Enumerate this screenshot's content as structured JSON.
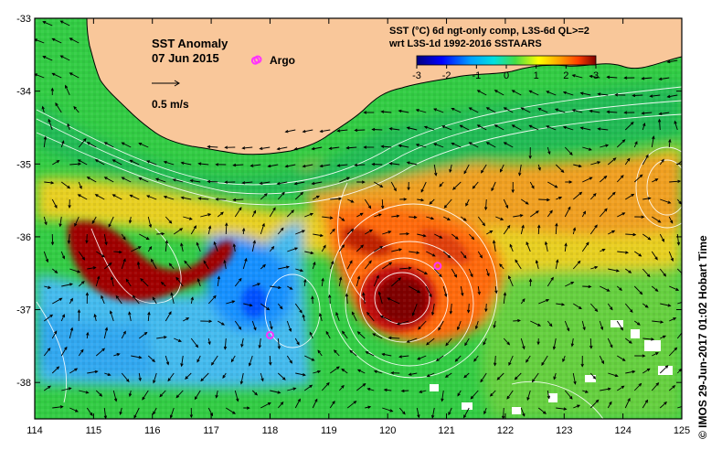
{
  "map": {
    "title": "SST Anomaly",
    "date": "07 Jun 2015",
    "legend_argo": "Argo",
    "scale_label": "0.5 m/s",
    "header_line1": "SST (°C) 6d ngt-only comp, L3S-6d QL>=2",
    "header_line2": "wrt L3S-1d 1992-2016 SSTAARS",
    "credit": "©  IMOS 29-Jun-2017 01:02 Hobart Time",
    "colors": {
      "land": "#f9c79a",
      "argo": "#ff33ff",
      "scale_cmap": [
        "#00007f",
        "#0000ff",
        "#00a0ff",
        "#00e0e0",
        "#44dd44",
        "#ffff00",
        "#ffa000",
        "#ff4000",
        "#7f0000"
      ]
    }
  },
  "chart_data": {
    "type": "heatmap",
    "xlim": [
      114,
      125
    ],
    "ylim": [
      -38.5,
      -33
    ],
    "x_ticks": [
      "114",
      "115",
      "116",
      "117",
      "118",
      "119",
      "120",
      "121",
      "122",
      "123",
      "124",
      "125"
    ],
    "y_ticks": [
      "-33",
      "-34",
      "-35",
      "-36",
      "-37",
      "-38"
    ],
    "colorbar_ticks": [
      "-3",
      "-2",
      "-1",
      "0",
      "1",
      "2",
      "3"
    ],
    "colorbar_range": [
      -3,
      3
    ],
    "argo_floats": [
      {
        "lon": 117.75,
        "lat": -33.58
      },
      {
        "lon": 120.85,
        "lat": -36.4
      },
      {
        "lon": 118.0,
        "lat": -37.35
      }
    ]
  }
}
